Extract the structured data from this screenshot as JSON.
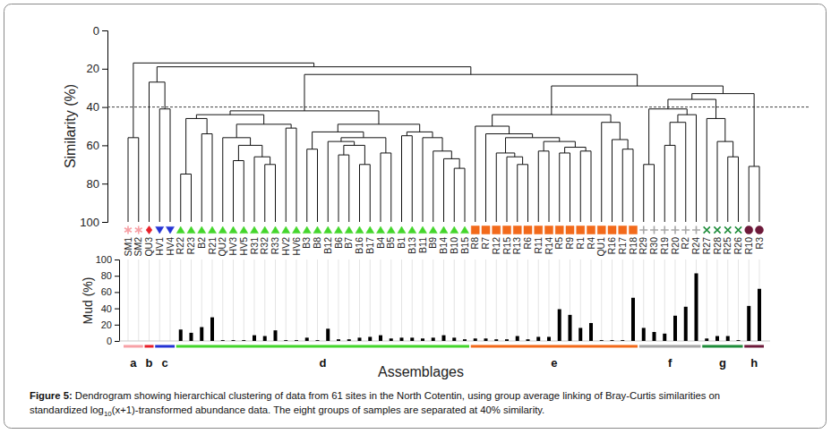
{
  "chart_data": [
    {
      "type": "dendrogram",
      "ylabel": "Similarity (%)",
      "ylim": [
        0,
        100
      ],
      "yticks": [
        0,
        20,
        40,
        60,
        80,
        100
      ],
      "threshold": 40,
      "categories": [
        "SM1",
        "SM2",
        "QU3",
        "HV1",
        "HV4",
        "R22",
        "R23",
        "B2",
        "R21",
        "QU2",
        "HV3",
        "HV5",
        "R31",
        "R32",
        "R33",
        "HV2",
        "HV6",
        "B3",
        "B8",
        "B12",
        "B6",
        "B7",
        "B16",
        "B17",
        "B4",
        "B5",
        "B1",
        "B13",
        "B11",
        "B9",
        "B14",
        "B10",
        "B15",
        "R8",
        "R7",
        "R12",
        "R15",
        "R13",
        "R6",
        "R11",
        "R14",
        "R5",
        "R9",
        "R1",
        "R4",
        "QU1",
        "R16",
        "R17",
        "R18",
        "R29",
        "R30",
        "R19",
        "R20",
        "R2",
        "R24",
        "R27",
        "R28",
        "R25",
        "R26",
        "R10",
        "R3"
      ],
      "group": [
        "a",
        "a",
        "b",
        "c",
        "c",
        "d",
        "d",
        "d",
        "d",
        "d",
        "d",
        "d",
        "d",
        "d",
        "d",
        "d",
        "d",
        "d",
        "d",
        "d",
        "d",
        "d",
        "d",
        "d",
        "d",
        "d",
        "d",
        "d",
        "d",
        "d",
        "d",
        "d",
        "d",
        "e",
        "e",
        "e",
        "e",
        "e",
        "e",
        "e",
        "e",
        "e",
        "e",
        "e",
        "e",
        "e",
        "e",
        "e",
        "e",
        "f",
        "f",
        "f",
        "f",
        "f",
        "f",
        "g",
        "g",
        "g",
        "g",
        "h",
        "h"
      ],
      "groups": [
        {
          "name": "a",
          "color": "#f7a1a6",
          "marker": "asterisk"
        },
        {
          "name": "b",
          "color": "#e8202a",
          "marker": "diamond"
        },
        {
          "name": "c",
          "color": "#2433d4",
          "marker": "triangle-down"
        },
        {
          "name": "d",
          "color": "#44d62c",
          "marker": "triangle"
        },
        {
          "name": "e",
          "color": "#f26a1b",
          "marker": "square"
        },
        {
          "name": "f",
          "color": "#a6a6a6",
          "marker": "plus"
        },
        {
          "name": "g",
          "color": "#1e8c3a",
          "marker": "x"
        },
        {
          "name": "h",
          "color": "#6d1a3a",
          "marker": "circle"
        }
      ],
      "tree": {
        "similarity": 17,
        "children": [
          {
            "similarity": 56,
            "children": [
              0,
              1
            ]
          },
          {
            "similarity": 19,
            "children": [
              {
                "similarity": 27,
                "children": [
                  2,
                  {
                    "similarity": 41,
                    "children": [
                      3,
                      4
                    ]
                  }
                ]
              },
              {
                "similarity": 23,
                "children": [
                  {
                    "similarity": 42,
                    "children": [
                      {
                        "similarity": 44,
                        "children": [
                          {
                            "similarity": 46,
                            "children": [
                              {
                                "similarity": 75,
                                "children": [
                                  5,
                                  6
                                ]
                              },
                              {
                                "similarity": 54,
                                "children": [
                                  7,
                                  8
                                ]
                              }
                            ]
                          },
                          {
                            "similarity": 49,
                            "children": [
                              {
                                "similarity": 56,
                                "children": [
                                  9,
                                  {
                                    "similarity": 60,
                                    "children": [
                                      {
                                        "similarity": 68,
                                        "children": [
                                          10,
                                          11
                                        ]
                                      },
                                      {
                                        "similarity": 66,
                                        "children": [
                                          12,
                                          {
                                            "similarity": 70,
                                            "children": [
                                              13,
                                              14
                                            ]
                                          }
                                        ]
                                      }
                                    ]
                                  }
                                ]
                              },
                              {
                                "similarity": 51,
                                "children": [
                                  15,
                                  16
                                ]
                              }
                            ]
                          }
                        ]
                      },
                      {
                        "similarity": 49,
                        "children": [
                          {
                            "similarity": 53,
                            "children": [
                              {
                                "similarity": 62,
                                "children": [
                                  17,
                                  18
                                ]
                              },
                              {
                                "similarity": 56,
                                "children": [
                                  {
                                    "similarity": 58,
                                    "children": [
                                      19,
                                      {
                                        "similarity": 60,
                                        "children": [
                                          {
                                            "similarity": 65,
                                            "children": [
                                              20,
                                              21
                                            ]
                                          },
                                          {
                                            "similarity": 70,
                                            "children": [
                                              22,
                                              23
                                            ]
                                          }
                                        ]
                                      }
                                    ]
                                  },
                                  {
                                    "similarity": 64,
                                    "children": [
                                      24,
                                      25
                                    ]
                                  }
                                ]
                              }
                            ]
                          },
                          {
                            "similarity": 53,
                            "children": [
                              {
                                "similarity": 55,
                                "children": [
                                  26,
                                  27
                                ]
                              },
                              {
                                "similarity": 56,
                                "children": [
                                  28,
                                  {
                                    "similarity": 63,
                                    "children": [
                                      29,
                                      {
                                        "similarity": 67,
                                        "children": [
                                          30,
                                          {
                                            "similarity": 72,
                                            "children": [
                                              31,
                                              32
                                            ]
                                          }
                                        ]
                                      }
                                    ]
                                  }
                                ]
                              }
                            ]
                          }
                        ]
                      }
                    ]
                  },
                  {
                    "similarity": 29,
                    "children": [
                      {
                        "similarity": 44,
                        "children": [
                          {
                            "similarity": 50,
                            "children": [
                              33,
                              {
                                "similarity": 54,
                                "children": [
                                  34,
                                  {
                                    "similarity": 56,
                                    "children": [
                                      {
                                        "similarity": 64,
                                        "children": [
                                          35,
                                          {
                                            "similarity": 66,
                                            "children": [
                                              36,
                                              {
                                                "similarity": 70,
                                                "children": [
                                                  37,
                                                  38
                                                ]
                                              }
                                            ]
                                          }
                                        ]
                                      },
                                      {
                                        "similarity": 58,
                                        "children": [
                                          {
                                            "similarity": 63,
                                            "children": [
                                              39,
                                              40
                                            ]
                                          },
                                          {
                                            "similarity": 61,
                                            "children": [
                                              {
                                                "similarity": 64,
                                                "children": [
                                                  41,
                                                  42
                                                ]
                                              },
                                              {
                                                "similarity": 63,
                                                "children": [
                                                  43,
                                                  44
                                                ]
                                              }
                                            ]
                                          }
                                        ]
                                      }
                                    ]
                                  }
                                ]
                              }
                            ]
                          },
                          {
                            "similarity": 48,
                            "children": [
                              45,
                              {
                                "similarity": 57,
                                "children": [
                                  46,
                                  {
                                    "similarity": 62,
                                    "children": [
                                      47,
                                      48
                                    ]
                                  }
                                ]
                              }
                            ]
                          }
                        ]
                      },
                      {
                        "similarity": 33,
                        "children": [
                          {
                            "similarity": 36,
                            "children": [
                              {
                                "similarity": 41,
                                "children": [
                                  {
                                    "similarity": 70,
                                    "children": [
                                      49,
                                      50
                                    ]
                                  },
                                  {
                                    "similarity": 44,
                                    "children": [
                                      {
                                        "similarity": 48,
                                        "children": [
                                          {
                                            "similarity": 60,
                                            "children": [
                                              51,
                                              52
                                            ]
                                          },
                                          53
                                        ]
                                      },
                                      54
                                    ]
                                  }
                                ]
                              },
                              {
                                "similarity": 46,
                                "children": [
                                  55,
                                  {
                                    "similarity": 58,
                                    "children": [
                                      56,
                                      {
                                        "similarity": 66,
                                        "children": [
                                          57,
                                          58
                                        ]
                                      }
                                    ]
                                  }
                                ]
                              }
                            ]
                          },
                          {
                            "similarity": 71,
                            "children": [
                              59,
                              60
                            ]
                          }
                        ]
                      }
                    ]
                  }
                ]
              }
            ]
          }
        ]
      }
    },
    {
      "type": "bar",
      "ylabel": "Mud (%)",
      "xlabel": "Assemblages",
      "color": "#000000",
      "ylim": [
        0,
        100
      ],
      "yticks": [
        0,
        20,
        40,
        60,
        80,
        100
      ],
      "values": [
        0,
        0,
        0,
        0,
        0,
        14,
        10,
        17,
        29,
        1,
        1,
        1,
        7,
        6,
        13,
        1,
        1,
        4,
        1,
        15,
        2,
        2,
        4,
        5,
        7,
        3,
        4,
        4,
        3,
        4,
        7,
        4,
        2,
        3,
        3,
        2,
        2,
        6,
        2,
        5,
        5,
        39,
        32,
        16,
        22,
        1,
        1,
        1,
        53,
        16,
        11,
        9,
        31,
        42,
        83,
        3,
        6,
        6,
        1,
        43,
        64
      ]
    }
  ],
  "caption": {
    "label": "Figure 5:",
    "lines": [
      [
        "Dendrogram showing hierarchical clustering of data from 61 sites in the North Cotentin, using group average linking of Bray-Curtis similarities on"
      ],
      [
        "standardized log",
        "10",
        "(x+1)-transformed abundance data. The eight groups of samples are separated at 40% similarity."
      ]
    ]
  }
}
